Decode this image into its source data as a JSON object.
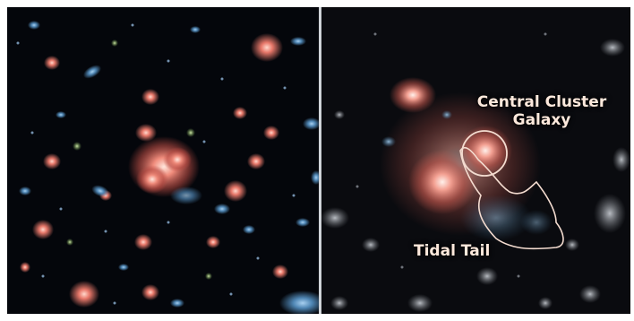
{
  "panels": {
    "left": {
      "description_name": "galaxy-cluster-field-view"
    },
    "right": {
      "annotations": {
        "central_cluster_line1": "Central Cluster",
        "central_cluster_line2": "Galaxy",
        "tidal_tail": "Tidal Tail"
      },
      "outline_color": "#f4dcd0"
    }
  },
  "colors": {
    "background": "#05070c",
    "galaxy_red": "#e06a5c",
    "galaxy_blue": "#5d8fb8",
    "label_text": "#fde9dc"
  }
}
